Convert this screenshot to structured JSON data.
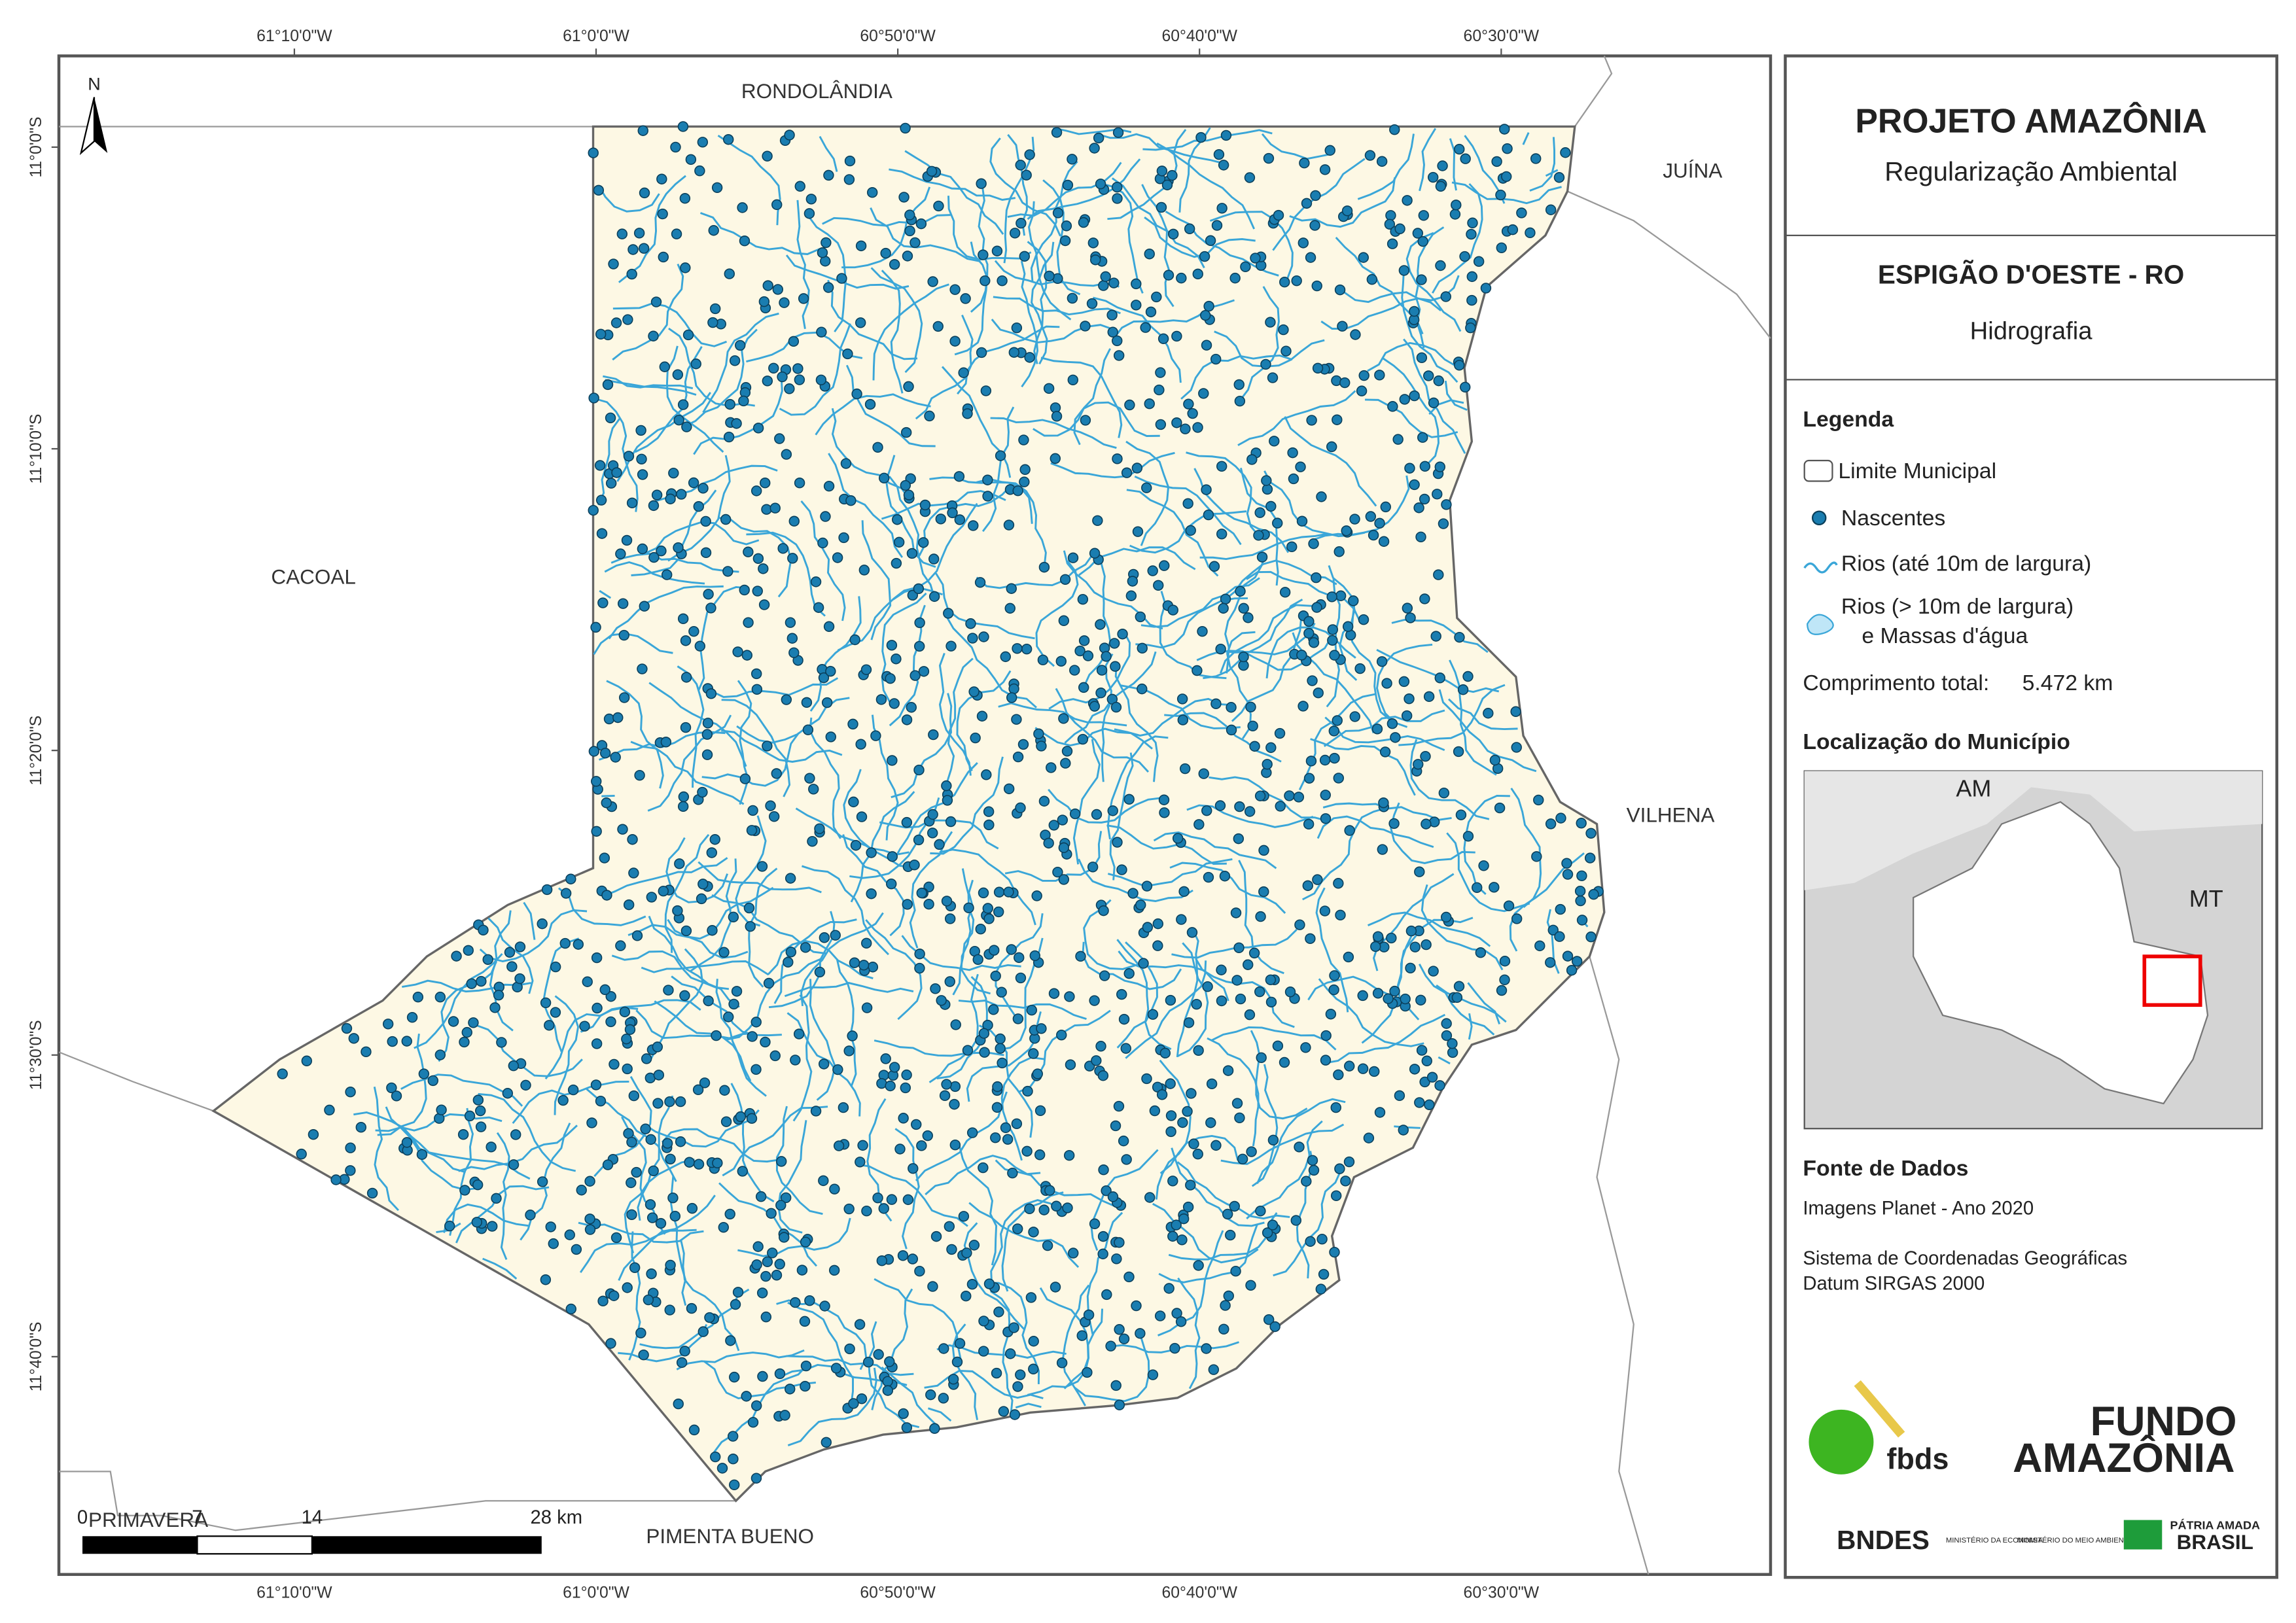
{
  "map": {
    "lon_labels": [
      "61°10'0\"W",
      "61°0'0\"W",
      "60°50'0\"W",
      "60°40'0\"W",
      "60°30'0\"W"
    ],
    "lat_labels": [
      "11°0'0\"S",
      "11°10'0\"S",
      "11°20'0\"S",
      "11°30'0\"S",
      "11°40'0\"S"
    ],
    "places": [
      "RONDOLÂNDIA",
      "JUÍNA",
      "CACOAL",
      "VILHENA",
      "PIMENTA BUENO",
      "PRIMAVERA"
    ],
    "north": "N",
    "scale": [
      "0",
      "7",
      "14",
      "28 km"
    ]
  },
  "header": {
    "title": "PROJETO AMAZÔNIA",
    "subtitle": "Regularização Ambiental"
  },
  "municipality": {
    "name": "ESPIGÃO D'OESTE - RO",
    "theme": "Hidrografia"
  },
  "legend": {
    "title": "Legenda",
    "items": [
      "Limite Municipal",
      "Nascentes",
      "Rios (até 10m de largura)",
      "Rios (> 10m de largura)",
      "e Massas d'água"
    ],
    "total_label": "Comprimento total:",
    "total_value": "5.472 km"
  },
  "location": {
    "title": "Localização do Município",
    "labels": [
      "AM",
      "MT"
    ]
  },
  "sources": {
    "title": "Fonte de Dados",
    "lines": [
      "Imagens Planet - Ano 2020",
      "Sistema de Coordenadas Geográficas",
      "Datum SIRGAS 2000"
    ]
  },
  "logos": [
    "fbds",
    "FUNDO",
    "AMAZÔNIA",
    "BNDES",
    "MINISTÉRIO DA ECONOMIA",
    "MINISTÉRIO DO MEIO AMBIENTE",
    "PÁTRIA AMADA",
    "BRASIL"
  ]
}
